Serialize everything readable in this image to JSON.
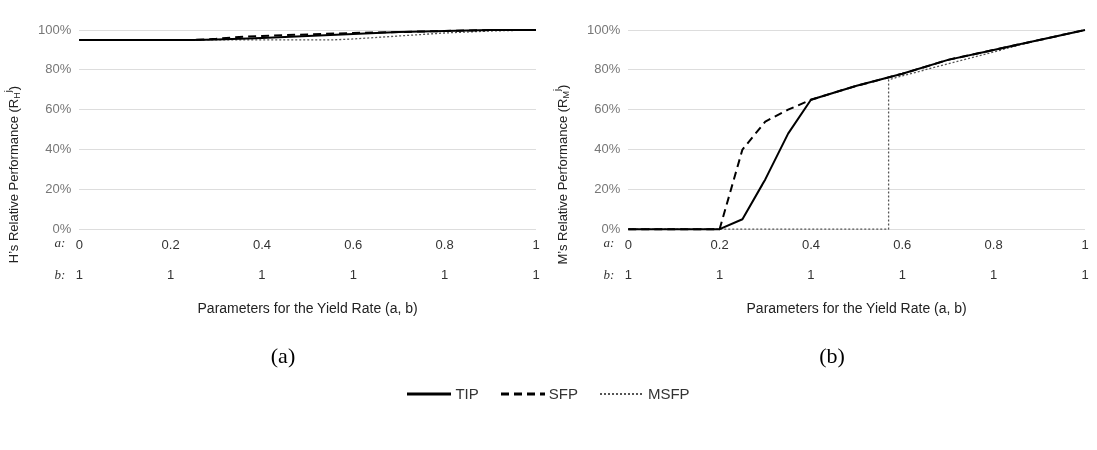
{
  "chart_data": [
    {
      "type": "line",
      "title": "(a)",
      "xlabel": "Parameters for the Yield Rate (a, b)",
      "ylabel": "H’s Relative Performance (R$_{H}$$^{j}$)",
      "xlim": [
        0,
        1
      ],
      "xticks": [
        0,
        0.2,
        0.4,
        0.6,
        0.8,
        1
      ],
      "ylim": [
        0,
        100
      ],
      "yticks": [
        {
          "value": 0,
          "label": "0%"
        },
        {
          "value": 20,
          "label": "20%"
        },
        {
          "value": 40,
          "label": "40%"
        },
        {
          "value": 60,
          "label": "60%"
        },
        {
          "value": 80,
          "label": "80%"
        },
        {
          "value": 100,
          "label": "100%"
        }
      ],
      "annotations": [
        "a:",
        "b:",
        "1",
        "1",
        "1",
        "1",
        "1",
        "1"
      ],
      "grid": "y",
      "legend": "bottom",
      "marker": "none",
      "series": [
        {
          "name": "TIP",
          "color": "#000000",
          "line_style": "solid",
          "x": [
            0,
            0.25,
            0.3,
            0.4,
            0.5,
            0.6,
            0.7,
            0.8,
            0.9,
            1
          ],
          "values": [
            95,
            95,
            95.2,
            96,
            97,
            98,
            99,
            99.5,
            100,
            100
          ]
        },
        {
          "name": "SFP",
          "color": "#000000",
          "line_style": "dashed",
          "x": [
            0,
            0.25,
            0.3,
            0.35,
            0.4,
            0.5,
            0.6,
            0.7,
            0.8,
            0.9,
            1
          ],
          "values": [
            95,
            95,
            95.6,
            96.5,
            97,
            97.8,
            98.5,
            99,
            99.5,
            100,
            100
          ]
        },
        {
          "name": "MSFP",
          "color": "#555555",
          "line_style": "dotted",
          "x": [
            0,
            0.55,
            0.6,
            0.7,
            0.8,
            0.9,
            1
          ],
          "values": [
            95,
            95,
            95.5,
            97,
            98.5,
            99.5,
            100
          ]
        }
      ]
    },
    {
      "type": "line",
      "title": "(b)",
      "xlabel": "Parameters for the Yield Rate (a, b)",
      "ylabel": "M’s Relative Performance (R$_{M}$$^{j}$)",
      "xlim": [
        0,
        1
      ],
      "xticks": [
        0,
        0.2,
        0.4,
        0.6,
        0.8,
        1
      ],
      "ylim": [
        0,
        100
      ],
      "yticks": [
        {
          "value": 0,
          "label": "0%"
        },
        {
          "value": 20,
          "label": "20%"
        },
        {
          "value": 40,
          "label": "40%"
        },
        {
          "value": 60,
          "label": "60%"
        },
        {
          "value": 80,
          "label": "80%"
        },
        {
          "value": 100,
          "label": "100%"
        }
      ],
      "annotations": [
        "a:",
        "b:",
        "1",
        "1",
        "1",
        "1",
        "1",
        "1"
      ],
      "grid": "y",
      "legend": "bottom",
      "marker": "none",
      "series": [
        {
          "name": "TIP",
          "color": "#000000",
          "line_style": "solid",
          "x": [
            0,
            0.2,
            0.25,
            0.3,
            0.35,
            0.4,
            0.5,
            0.6,
            0.7,
            0.8,
            0.9,
            1
          ],
          "values": [
            0,
            0,
            5,
            25,
            48,
            65,
            72,
            78,
            85,
            90,
            95,
            100
          ]
        },
        {
          "name": "SFP",
          "color": "#000000",
          "line_style": "dashed",
          "x": [
            0,
            0.2,
            0.25,
            0.3,
            0.35,
            0.4,
            0.5,
            0.6,
            0.7,
            0.8,
            0.9,
            1
          ],
          "values": [
            0,
            0,
            40,
            54,
            60,
            65,
            72,
            78,
            85,
            90,
            95,
            100
          ]
        },
        {
          "name": "MSFP",
          "color": "#555555",
          "line_style": "dotted",
          "x": [
            0,
            0.57,
            0.57,
            0.6,
            0.7,
            0.8,
            0.9,
            1
          ],
          "values": [
            0,
            0,
            75,
            77,
            83,
            89,
            95,
            100
          ]
        }
      ]
    }
  ]
}
